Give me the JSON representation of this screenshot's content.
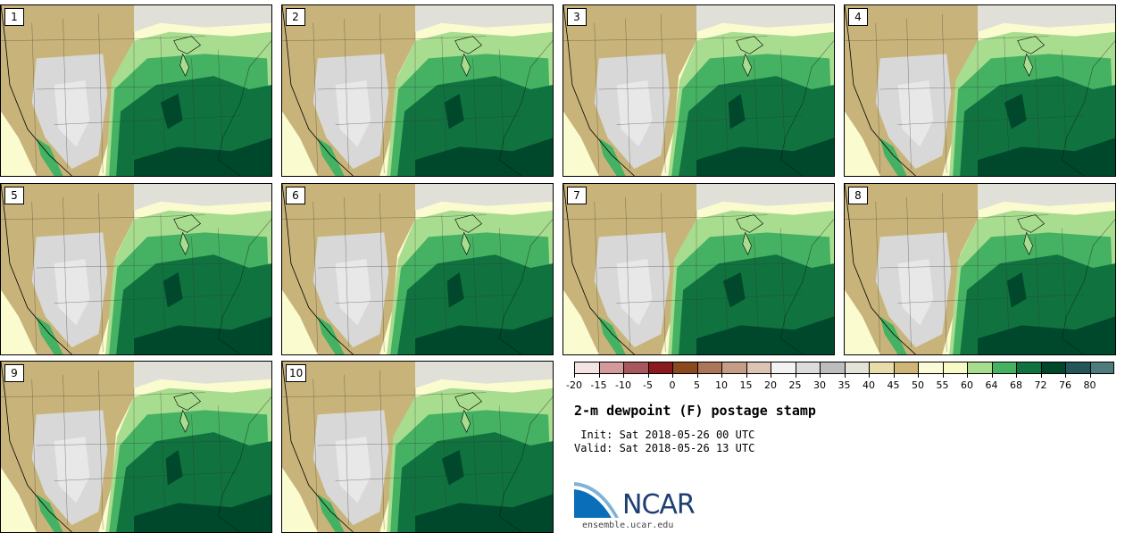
{
  "panels": [
    {
      "label": "1"
    },
    {
      "label": "2"
    },
    {
      "label": "3"
    },
    {
      "label": "4"
    },
    {
      "label": "5"
    },
    {
      "label": "6"
    },
    {
      "label": "7"
    },
    {
      "label": "8"
    },
    {
      "label": "9"
    },
    {
      "label": "10"
    }
  ],
  "legend": {
    "colors": [
      "#f3e3e3",
      "#d29a9a",
      "#a8575c",
      "#8b1a1f",
      "#8a4a1e",
      "#ab7659",
      "#c59d86",
      "#dcc4b5",
      "#f2f2f2",
      "#dcdcdc",
      "#bdbdbd",
      "#e3e3d6",
      "#e7dcaa",
      "#cdb677",
      "#fbfbd8",
      "#f8fbc5",
      "#a8dd8f",
      "#45b162",
      "#10733f",
      "#00482b",
      "#245659",
      "#4f7b7d"
    ],
    "ticks": [
      "-20",
      "-15",
      "-10",
      "-5",
      "0",
      "5",
      "10",
      "15",
      "20",
      "25",
      "30",
      "35",
      "40",
      "45",
      "50",
      "55",
      "60",
      "64",
      "68",
      "72",
      "76",
      "80"
    ]
  },
  "title": "2-m dewpoint (F) postage stamp",
  "init": " Init: Sat 2018-05-26 00 UTC",
  "valid": "Valid: Sat 2018-05-26 13 UTC",
  "logo": {
    "text": "NCAR",
    "url": "ensemble.ucar.edu"
  },
  "colors": {
    "land_dry": "#c8b47a",
    "land_moist": "#fbfbd0",
    "green_light": "#a8dd8f",
    "green_mid": "#45b162",
    "green_dark": "#10733f",
    "green_darkest": "#00482b",
    "gray": "#d8d8d8"
  }
}
